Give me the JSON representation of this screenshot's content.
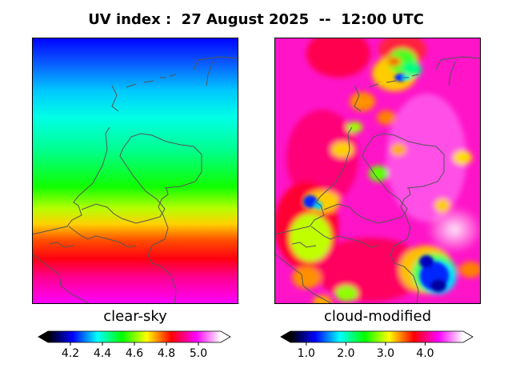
{
  "title": "UV index :  27 August 2025  --  12:00 UTC",
  "panels": [
    {
      "label": "clear-sky",
      "colorbar": {
        "ticks": [
          "4.2",
          "4.4",
          "4.6",
          "4.8",
          "5.0"
        ],
        "range": [
          4.06,
          5.14
        ],
        "extend": "both"
      }
    },
    {
      "label": "cloud-modified",
      "colorbar": {
        "ticks": [
          "1.0",
          "2.0",
          "3.0",
          "4.0"
        ],
        "range": [
          0.6,
          4.96
        ],
        "extend": "both"
      }
    }
  ],
  "colormap": [
    "#000000",
    "#0000ff",
    "#00ffff",
    "#00ff00",
    "#ffff00",
    "#ff0000",
    "#ff00ff",
    "#ffffff"
  ],
  "colors": {
    "coastline": "#555555",
    "frame": "#000000"
  }
}
